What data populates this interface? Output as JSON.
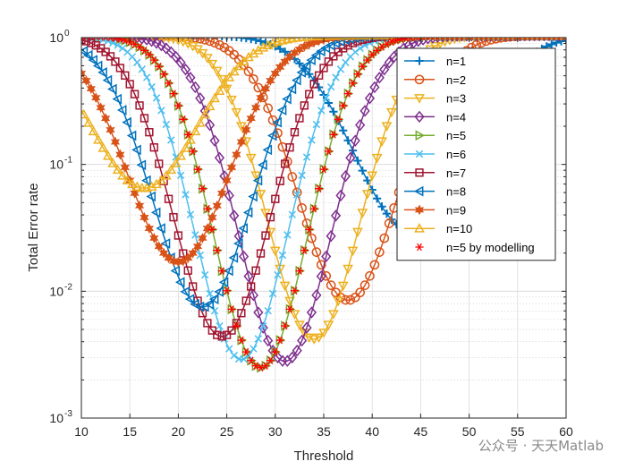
{
  "chart_data": {
    "type": "line",
    "xlabel": "Threshold",
    "ylabel": "Total Error rate",
    "xlim": [
      10,
      60
    ],
    "ylim": [
      0.001,
      1
    ],
    "y_scale": "log",
    "grid": "on (major and minor)",
    "legend_position": "top-right",
    "x_ticks": [
      10,
      15,
      20,
      25,
      30,
      35,
      40,
      45,
      50,
      55,
      60
    ],
    "y_ticks": [
      {
        "value": 0.001,
        "base": "10",
        "exp": "-3"
      },
      {
        "value": 0.01,
        "base": "10",
        "exp": "-2"
      },
      {
        "value": 0.1,
        "base": "10",
        "exp": "-1"
      },
      {
        "value": 1,
        "base": "10",
        "exp": "0"
      }
    ],
    "series": [
      {
        "name": "n=1",
        "color": "#0072BD",
        "marker": "plus",
        "minimum": [
          44,
          0.03
        ],
        "width": 0.75
      },
      {
        "name": "n=2",
        "color": "#D95319",
        "marker": "circle",
        "minimum": [
          37.5,
          0.0085
        ],
        "width": 0.66
      },
      {
        "name": "n=3",
        "color": "#EDB120",
        "marker": "triangle-down",
        "minimum": [
          34,
          0.0042
        ],
        "width": 0.62
      },
      {
        "name": "n=4",
        "color": "#7E2F8E",
        "marker": "diamond",
        "minimum": [
          31,
          0.0028
        ],
        "width": 0.62
      },
      {
        "name": "n=5",
        "color": "#77AC30",
        "marker": "triangle-right",
        "minimum": [
          28.5,
          0.0025
        ],
        "width": 0.62
      },
      {
        "name": "n=6",
        "color": "#4DBEEE",
        "marker": "x",
        "minimum": [
          26.5,
          0.0029
        ],
        "width": 0.62
      },
      {
        "name": "n=7",
        "color": "#A2142F",
        "marker": "square",
        "minimum": [
          24.5,
          0.0044
        ],
        "width": 0.64
      },
      {
        "name": "n=8",
        "color": "#0072BD",
        "marker": "triangle-left",
        "minimum": [
          22.5,
          0.0075
        ],
        "width": 0.66
      },
      {
        "name": "n=9",
        "color": "#D95319",
        "marker": "hexagram",
        "minimum": [
          20,
          0.017
        ],
        "width": 0.68
      },
      {
        "name": "n=10",
        "color": "#EDB120",
        "marker": "triangle-up",
        "minimum": [
          16.5,
          0.065
        ],
        "width": 0.7
      },
      {
        "name": "n=5 by modelling",
        "color": "#FF0000",
        "marker": "asterisk",
        "line": "none",
        "minimum": [
          28.5,
          0.0025
        ],
        "width": 0.62
      }
    ]
  },
  "watermark": "公众号 · 天天Matlab"
}
